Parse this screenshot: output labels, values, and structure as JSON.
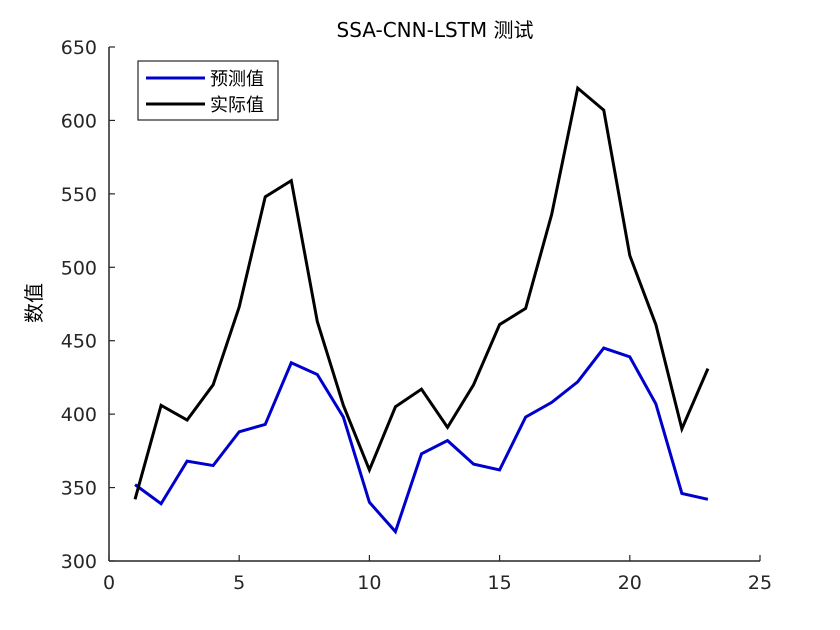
{
  "chart_data": {
    "type": "line",
    "title": "SSA-CNN-LSTM 测试",
    "xlabel": "",
    "ylabel": "数值",
    "xlim": [
      0,
      25
    ],
    "ylim": [
      300,
      650
    ],
    "xticks": [
      0,
      5,
      10,
      15,
      20,
      25
    ],
    "yticks": [
      300,
      350,
      400,
      450,
      500,
      550,
      600,
      650
    ],
    "grid": false,
    "legend_position": "top-left",
    "x": [
      1,
      2,
      3,
      4,
      5,
      6,
      7,
      8,
      9,
      10,
      11,
      12,
      13,
      14,
      15,
      16,
      17,
      18,
      19,
      20,
      21,
      22,
      23
    ],
    "series": [
      {
        "name": "预测值",
        "color": "#0000cc",
        "values": [
          352,
          339,
          368,
          365,
          388,
          393,
          435,
          427,
          398,
          340,
          320,
          373,
          382,
          366,
          362,
          398,
          408,
          422,
          445,
          439,
          407,
          346,
          342
        ]
      },
      {
        "name": "实际值",
        "color": "#000000",
        "values": [
          342,
          406,
          396,
          420,
          473,
          548,
          559,
          463,
          406,
          362,
          405,
          417,
          391,
          420,
          461,
          472,
          536,
          622,
          607,
          508,
          461,
          390,
          431
        ]
      }
    ]
  }
}
